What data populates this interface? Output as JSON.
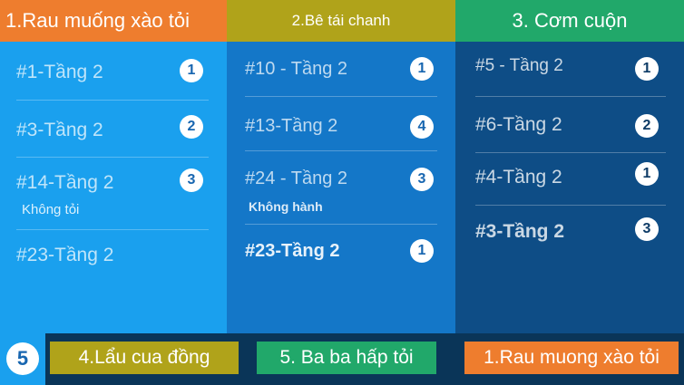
{
  "columns": [
    {
      "header": "1.Rau muống xào tỏi",
      "items": [
        {
          "label": "#1-Tầng 2",
          "qty": "1",
          "note": ""
        },
        {
          "label": "#3-Tầng 2",
          "qty": "2",
          "note": ""
        },
        {
          "label": "#14-Tầng 2",
          "qty": "3",
          "note": "Không tỏi"
        },
        {
          "label": "#23-Tầng 2",
          "qty": "",
          "note": ""
        }
      ]
    },
    {
      "header": "2.Bê tái chanh",
      "items": [
        {
          "label": "#10 - Tầng 2",
          "qty": "1",
          "note": ""
        },
        {
          "label": "#13-Tầng 2",
          "qty": "4",
          "note": ""
        },
        {
          "label": "#24 - Tầng 2",
          "qty": "3",
          "note": "Không hành"
        },
        {
          "label": "#23-Tầng 2",
          "qty": "1",
          "note": ""
        }
      ]
    },
    {
      "header": "3. Cơm cuộn",
      "items": [
        {
          "label": "#5 - Tầng 2",
          "qty": "1",
          "note": ""
        },
        {
          "label": "#6-Tầng 2",
          "qty": "2",
          "note": ""
        },
        {
          "label": "#4-Tầng 2",
          "qty": "1",
          "note": ""
        },
        {
          "label": "#3-Tầng 2",
          "qty": "3",
          "note": ""
        }
      ]
    }
  ],
  "bottom": {
    "count": "5",
    "queue": [
      "4.Lẩu cua đồng",
      "5. Ba ba hấp tỏi",
      "1.Rau muong xào tỏi"
    ]
  },
  "colors": {
    "column_1": "#1aa0ee",
    "column_2": "#1477c8",
    "column_3": "#0e4d86",
    "header_orange": "#ee7d2e",
    "header_olive": "#b0a31a",
    "header_green": "#21a86a",
    "background": "#0a3558"
  }
}
